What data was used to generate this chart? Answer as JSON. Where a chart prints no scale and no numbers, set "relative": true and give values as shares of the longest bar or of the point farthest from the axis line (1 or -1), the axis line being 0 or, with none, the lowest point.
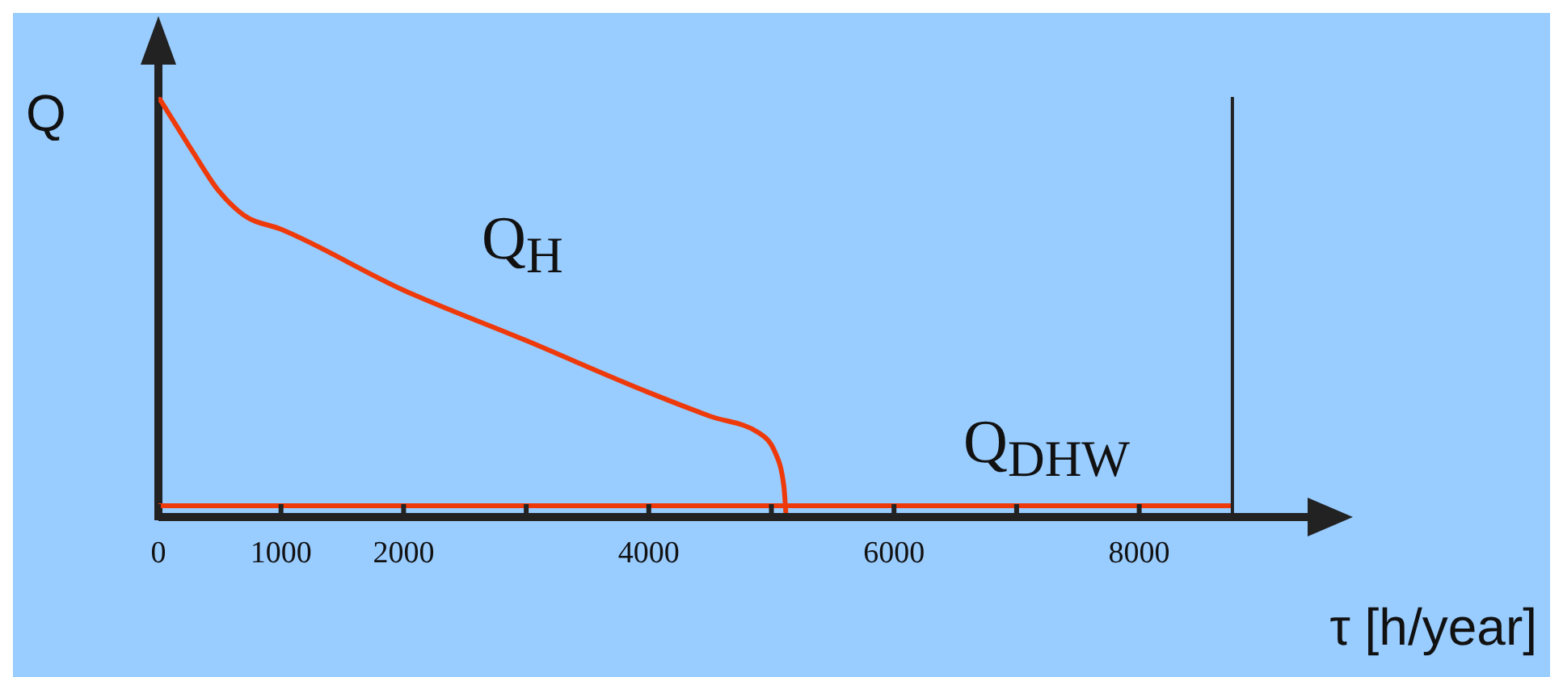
{
  "chart_data": {
    "type": "line",
    "relative": true,
    "xlabel": "τ [h/year]",
    "ylabel": "Q",
    "xlim": [
      0,
      9400
    ],
    "xticks": [
      0,
      1000,
      2000,
      {
        "value": 3000,
        "label": null
      },
      4000,
      {
        "value": 5000,
        "label": null
      },
      6000,
      {
        "value": 7000,
        "label": null
      },
      8000
    ],
    "series": [
      {
        "color": "#ee3a0a",
        "x": [
          0,
          150,
          290,
          490,
          690,
          1000,
          2000,
          3000,
          3970,
          4500,
          4900,
          5030,
          5100,
          5120
        ],
        "values": [
          1,
          0.93,
          0.865,
          0.777,
          0.72,
          0.685,
          0.54,
          0.42,
          0.3,
          0.24,
          0.2,
          0.154,
          0.077,
          0
        ]
      },
      {
        "color": "#ee3a0a",
        "x": [
          0,
          8760
        ],
        "values": [
          0.027,
          0.027
        ]
      }
    ],
    "ref_lines": [
      {
        "axis": "x",
        "value": 8760,
        "color": "#222222"
      }
    ],
    "annotations": [
      "Q$_{H}$",
      "Q$_{DHW}$"
    ],
    "grid": false,
    "marker": "none"
  }
}
